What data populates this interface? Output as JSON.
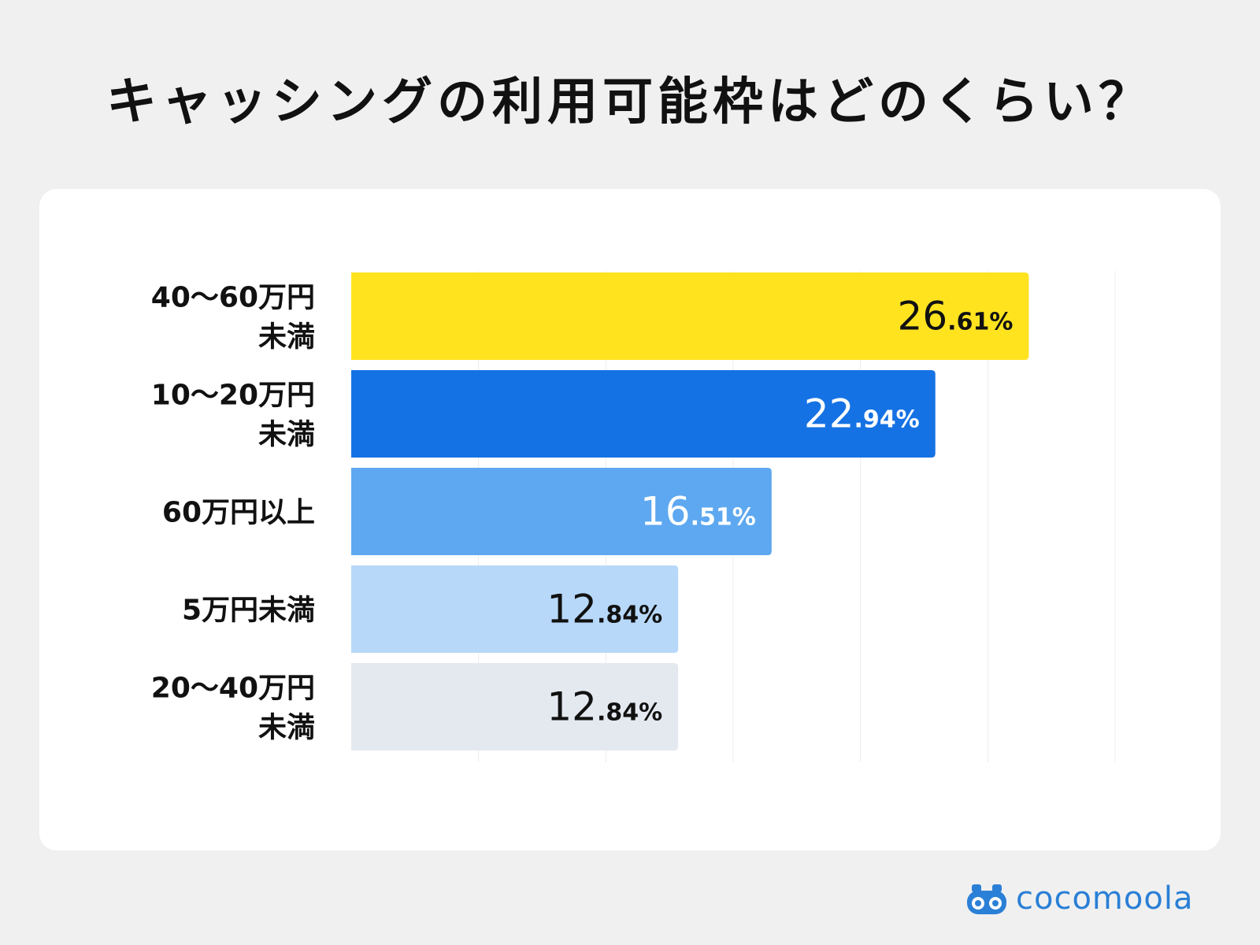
{
  "title": "キャッシングの利用可能枠はどのくらい？",
  "brand": {
    "name": "cocomoola",
    "icon": "binoculars-logo-icon",
    "color": "#2a7fd6"
  },
  "chart_data": {
    "type": "bar",
    "orientation": "horizontal",
    "title": "キャッシングの利用可能枠はどのくらい？",
    "categories": [
      [
        "40〜60万円",
        "未満"
      ],
      [
        "10〜20万円",
        "未満"
      ],
      [
        "60万円以上"
      ],
      [
        "5万円未満"
      ],
      [
        "20〜40万円",
        "未満"
      ]
    ],
    "values": [
      26.61,
      22.94,
      16.51,
      12.84,
      12.84
    ],
    "value_labels": [
      {
        "int": "26",
        "dec": ".61%"
      },
      {
        "int": "22",
        "dec": ".94%"
      },
      {
        "int": "16",
        "dec": ".51%"
      },
      {
        "int": "12",
        "dec": ".84%"
      },
      {
        "int": "12",
        "dec": ".84%"
      }
    ],
    "colors": [
      "#ffe31f",
      "#1572e4",
      "#5da8f0",
      "#b7d8f9",
      "#e4e9f0"
    ],
    "label_colors": [
      "#111111",
      "#ffffff",
      "#ffffff",
      "#111111",
      "#111111"
    ],
    "xlim": [
      0,
      30
    ],
    "grid": true,
    "legend": "none"
  }
}
